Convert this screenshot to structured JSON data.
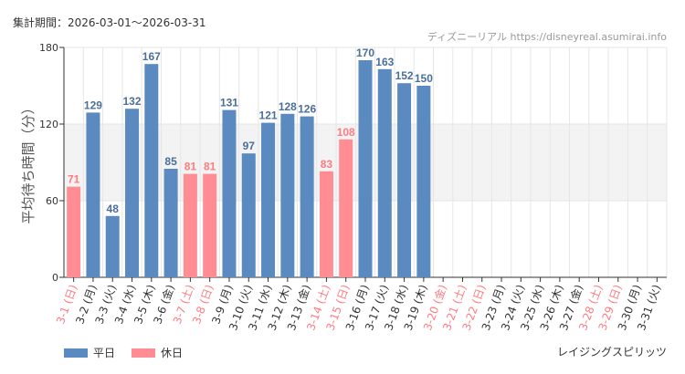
{
  "period_label": "集計期間：2026-03-01〜2026-03-31",
  "credit": "ディズニーリアル https://disneyreal.asumirai.info",
  "attraction": "レイジングスピリッツ",
  "colors": {
    "weekday": "#5b8ac0",
    "holiday": "#ff8d93",
    "weekday_text": "#4a6f99",
    "holiday_text": "#ff7b81",
    "band": "#f3f3f3",
    "grid": "#e6e6e6",
    "axis": "#333333"
  },
  "chart_data": {
    "type": "bar",
    "title": "",
    "xlabel": "",
    "ylabel": "平均待ち時間（分）",
    "ylim": [
      0,
      180
    ],
    "yticks": [
      0,
      60,
      120,
      180
    ],
    "bands": [
      [
        60,
        120
      ]
    ],
    "legend": [
      {
        "name": "平日",
        "kind": "weekday"
      },
      {
        "name": "休日",
        "kind": "holiday"
      }
    ],
    "categories": [
      "3-1 (日)",
      "3-2 (月)",
      "3-3 (火)",
      "3-4 (水)",
      "3-5 (木)",
      "3-6 (金)",
      "3-7 (土)",
      "3-8 (日)",
      "3-9 (月)",
      "3-10 (火)",
      "3-11 (水)",
      "3-12 (木)",
      "3-13 (金)",
      "3-14 (土)",
      "3-15 (日)",
      "3-16 (月)",
      "3-17 (火)",
      "3-18 (水)",
      "3-19 (木)",
      "3-20 (金)",
      "3-21 (土)",
      "3-22 (日)",
      "3-23 (月)",
      "3-24 (火)",
      "3-25 (水)",
      "3-26 (木)",
      "3-27 (金)",
      "3-28 (土)",
      "3-29 (日)",
      "3-30 (月)",
      "3-31 (火)"
    ],
    "values": [
      71,
      129,
      48,
      132,
      167,
      85,
      81,
      81,
      131,
      97,
      121,
      128,
      126,
      83,
      108,
      170,
      163,
      152,
      150,
      null,
      null,
      null,
      null,
      null,
      null,
      null,
      null,
      null,
      null,
      null,
      null
    ],
    "day_type": [
      "holiday",
      "weekday",
      "weekday",
      "weekday",
      "weekday",
      "weekday",
      "holiday",
      "holiday",
      "weekday",
      "weekday",
      "weekday",
      "weekday",
      "weekday",
      "holiday",
      "holiday",
      "weekday",
      "weekday",
      "weekday",
      "weekday",
      "holiday",
      "holiday",
      "holiday",
      "weekday",
      "weekday",
      "weekday",
      "weekday",
      "weekday",
      "holiday",
      "holiday",
      "weekday",
      "weekday"
    ]
  }
}
